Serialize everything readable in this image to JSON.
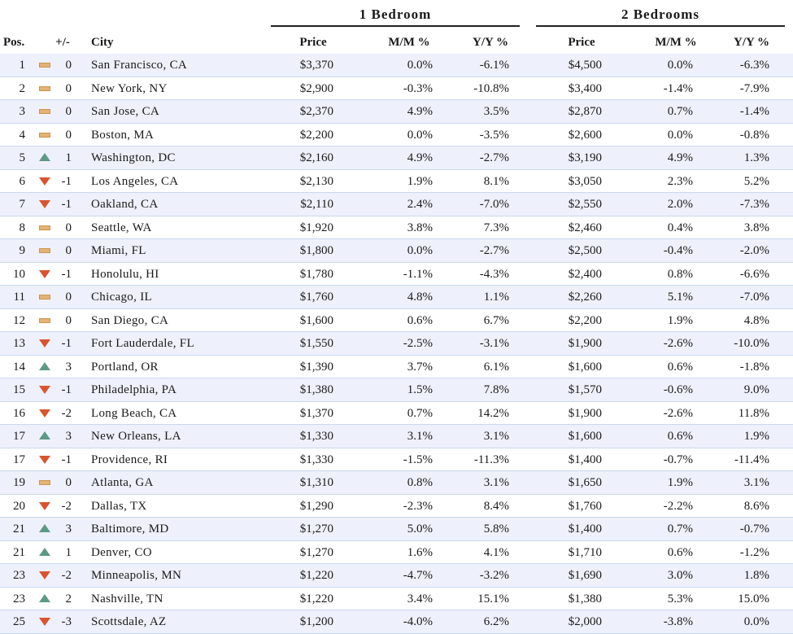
{
  "chart_data": {
    "type": "table",
    "group_headers": [
      "1 Bedroom",
      "2 Bedrooms"
    ],
    "columns": [
      "Pos.",
      "+/-",
      "City",
      "Price",
      "M/M %",
      "Y/Y %",
      "Price",
      "M/M %",
      "Y/Y %"
    ],
    "colors": {
      "up": "#5c9a86",
      "down": "#d9532f",
      "flat": "#e3b377",
      "stripe": "#eef0fb",
      "rule": "#c9d9ee"
    },
    "rows": [
      {
        "pos": "1",
        "trend": "flat",
        "change": "0",
        "city": "San Francisco, CA",
        "p1": "$3,370",
        "mm1": "0.0%",
        "yy1": "-6.1%",
        "p2": "$4,500",
        "mm2": "0.0%",
        "yy2": "-6.3%"
      },
      {
        "pos": "2",
        "trend": "flat",
        "change": "0",
        "city": "New York, NY",
        "p1": "$2,900",
        "mm1": "-0.3%",
        "yy1": "-10.8%",
        "p2": "$3,400",
        "mm2": "-1.4%",
        "yy2": "-7.9%"
      },
      {
        "pos": "3",
        "trend": "flat",
        "change": "0",
        "city": "San Jose, CA",
        "p1": "$2,370",
        "mm1": "4.9%",
        "yy1": "3.5%",
        "p2": "$2,870",
        "mm2": "0.7%",
        "yy2": "-1.4%"
      },
      {
        "pos": "4",
        "trend": "flat",
        "change": "0",
        "city": "Boston, MA",
        "p1": "$2,200",
        "mm1": "0.0%",
        "yy1": "-3.5%",
        "p2": "$2,600",
        "mm2": "0.0%",
        "yy2": "-0.8%"
      },
      {
        "pos": "5",
        "trend": "up",
        "change": "1",
        "city": "Washington, DC",
        "p1": "$2,160",
        "mm1": "4.9%",
        "yy1": "-2.7%",
        "p2": "$3,190",
        "mm2": "4.9%",
        "yy2": "1.3%"
      },
      {
        "pos": "6",
        "trend": "down",
        "change": "-1",
        "city": "Los Angeles, CA",
        "p1": "$2,130",
        "mm1": "1.9%",
        "yy1": "8.1%",
        "p2": "$3,050",
        "mm2": "2.3%",
        "yy2": "5.2%"
      },
      {
        "pos": "7",
        "trend": "down",
        "change": "-1",
        "city": "Oakland, CA",
        "p1": "$2,110",
        "mm1": "2.4%",
        "yy1": "-7.0%",
        "p2": "$2,550",
        "mm2": "2.0%",
        "yy2": "-7.3%"
      },
      {
        "pos": "8",
        "trend": "flat",
        "change": "0",
        "city": "Seattle, WA",
        "p1": "$1,920",
        "mm1": "3.8%",
        "yy1": "7.3%",
        "p2": "$2,460",
        "mm2": "0.4%",
        "yy2": "3.8%"
      },
      {
        "pos": "9",
        "trend": "flat",
        "change": "0",
        "city": "Miami, FL",
        "p1": "$1,800",
        "mm1": "0.0%",
        "yy1": "-2.7%",
        "p2": "$2,500",
        "mm2": "-0.4%",
        "yy2": "-2.0%"
      },
      {
        "pos": "10",
        "trend": "down",
        "change": "-1",
        "city": "Honolulu, HI",
        "p1": "$1,780",
        "mm1": "-1.1%",
        "yy1": "-4.3%",
        "p2": "$2,400",
        "mm2": "0.8%",
        "yy2": "-6.6%"
      },
      {
        "pos": "11",
        "trend": "flat",
        "change": "0",
        "city": "Chicago, IL",
        "p1": "$1,760",
        "mm1": "4.8%",
        "yy1": "1.1%",
        "p2": "$2,260",
        "mm2": "5.1%",
        "yy2": "-7.0%"
      },
      {
        "pos": "12",
        "trend": "flat",
        "change": "0",
        "city": "San Diego, CA",
        "p1": "$1,600",
        "mm1": "0.6%",
        "yy1": "6.7%",
        "p2": "$2,200",
        "mm2": "1.9%",
        "yy2": "4.8%"
      },
      {
        "pos": "13",
        "trend": "down",
        "change": "-1",
        "city": "Fort Lauderdale, FL",
        "p1": "$1,550",
        "mm1": "-2.5%",
        "yy1": "-3.1%",
        "p2": "$1,900",
        "mm2": "-2.6%",
        "yy2": "-10.0%"
      },
      {
        "pos": "14",
        "trend": "up",
        "change": "3",
        "city": "Portland, OR",
        "p1": "$1,390",
        "mm1": "3.7%",
        "yy1": "6.1%",
        "p2": "$1,600",
        "mm2": "0.6%",
        "yy2": "-1.8%"
      },
      {
        "pos": "15",
        "trend": "down",
        "change": "-1",
        "city": "Philadelphia, PA",
        "p1": "$1,380",
        "mm1": "1.5%",
        "yy1": "7.8%",
        "p2": "$1,570",
        "mm2": "-0.6%",
        "yy2": "9.0%"
      },
      {
        "pos": "16",
        "trend": "down",
        "change": "-2",
        "city": "Long Beach, CA",
        "p1": "$1,370",
        "mm1": "0.7%",
        "yy1": "14.2%",
        "p2": "$1,900",
        "mm2": "-2.6%",
        "yy2": "11.8%"
      },
      {
        "pos": "17",
        "trend": "up",
        "change": "3",
        "city": "New Orleans, LA",
        "p1": "$1,330",
        "mm1": "3.1%",
        "yy1": "3.1%",
        "p2": "$1,600",
        "mm2": "0.6%",
        "yy2": "1.9%"
      },
      {
        "pos": "17",
        "trend": "down",
        "change": "-1",
        "city": "Providence, RI",
        "p1": "$1,330",
        "mm1": "-1.5%",
        "yy1": "-11.3%",
        "p2": "$1,400",
        "mm2": "-0.7%",
        "yy2": "-11.4%"
      },
      {
        "pos": "19",
        "trend": "flat",
        "change": "0",
        "city": "Atlanta, GA",
        "p1": "$1,310",
        "mm1": "0.8%",
        "yy1": "3.1%",
        "p2": "$1,650",
        "mm2": "1.9%",
        "yy2": "3.1%"
      },
      {
        "pos": "20",
        "trend": "down",
        "change": "-2",
        "city": "Dallas, TX",
        "p1": "$1,290",
        "mm1": "-2.3%",
        "yy1": "8.4%",
        "p2": "$1,760",
        "mm2": "-2.2%",
        "yy2": "8.6%"
      },
      {
        "pos": "21",
        "trend": "up",
        "change": "3",
        "city": "Baltimore, MD",
        "p1": "$1,270",
        "mm1": "5.0%",
        "yy1": "5.8%",
        "p2": "$1,400",
        "mm2": "0.7%",
        "yy2": "-0.7%"
      },
      {
        "pos": "21",
        "trend": "up",
        "change": "1",
        "city": "Denver, CO",
        "p1": "$1,270",
        "mm1": "1.6%",
        "yy1": "4.1%",
        "p2": "$1,710",
        "mm2": "0.6%",
        "yy2": "-1.2%"
      },
      {
        "pos": "23",
        "trend": "down",
        "change": "-2",
        "city": "Minneapolis, MN",
        "p1": "$1,220",
        "mm1": "-4.7%",
        "yy1": "-3.2%",
        "p2": "$1,690",
        "mm2": "3.0%",
        "yy2": "1.8%"
      },
      {
        "pos": "23",
        "trend": "up",
        "change": "2",
        "city": "Nashville, TN",
        "p1": "$1,220",
        "mm1": "3.4%",
        "yy1": "15.1%",
        "p2": "$1,380",
        "mm2": "5.3%",
        "yy2": "15.0%"
      },
      {
        "pos": "25",
        "trend": "down",
        "change": "-3",
        "city": "Scottsdale, AZ",
        "p1": "$1,200",
        "mm1": "-4.0%",
        "yy1": "6.2%",
        "p2": "$2,000",
        "mm2": "-3.8%",
        "yy2": "0.0%"
      }
    ]
  }
}
